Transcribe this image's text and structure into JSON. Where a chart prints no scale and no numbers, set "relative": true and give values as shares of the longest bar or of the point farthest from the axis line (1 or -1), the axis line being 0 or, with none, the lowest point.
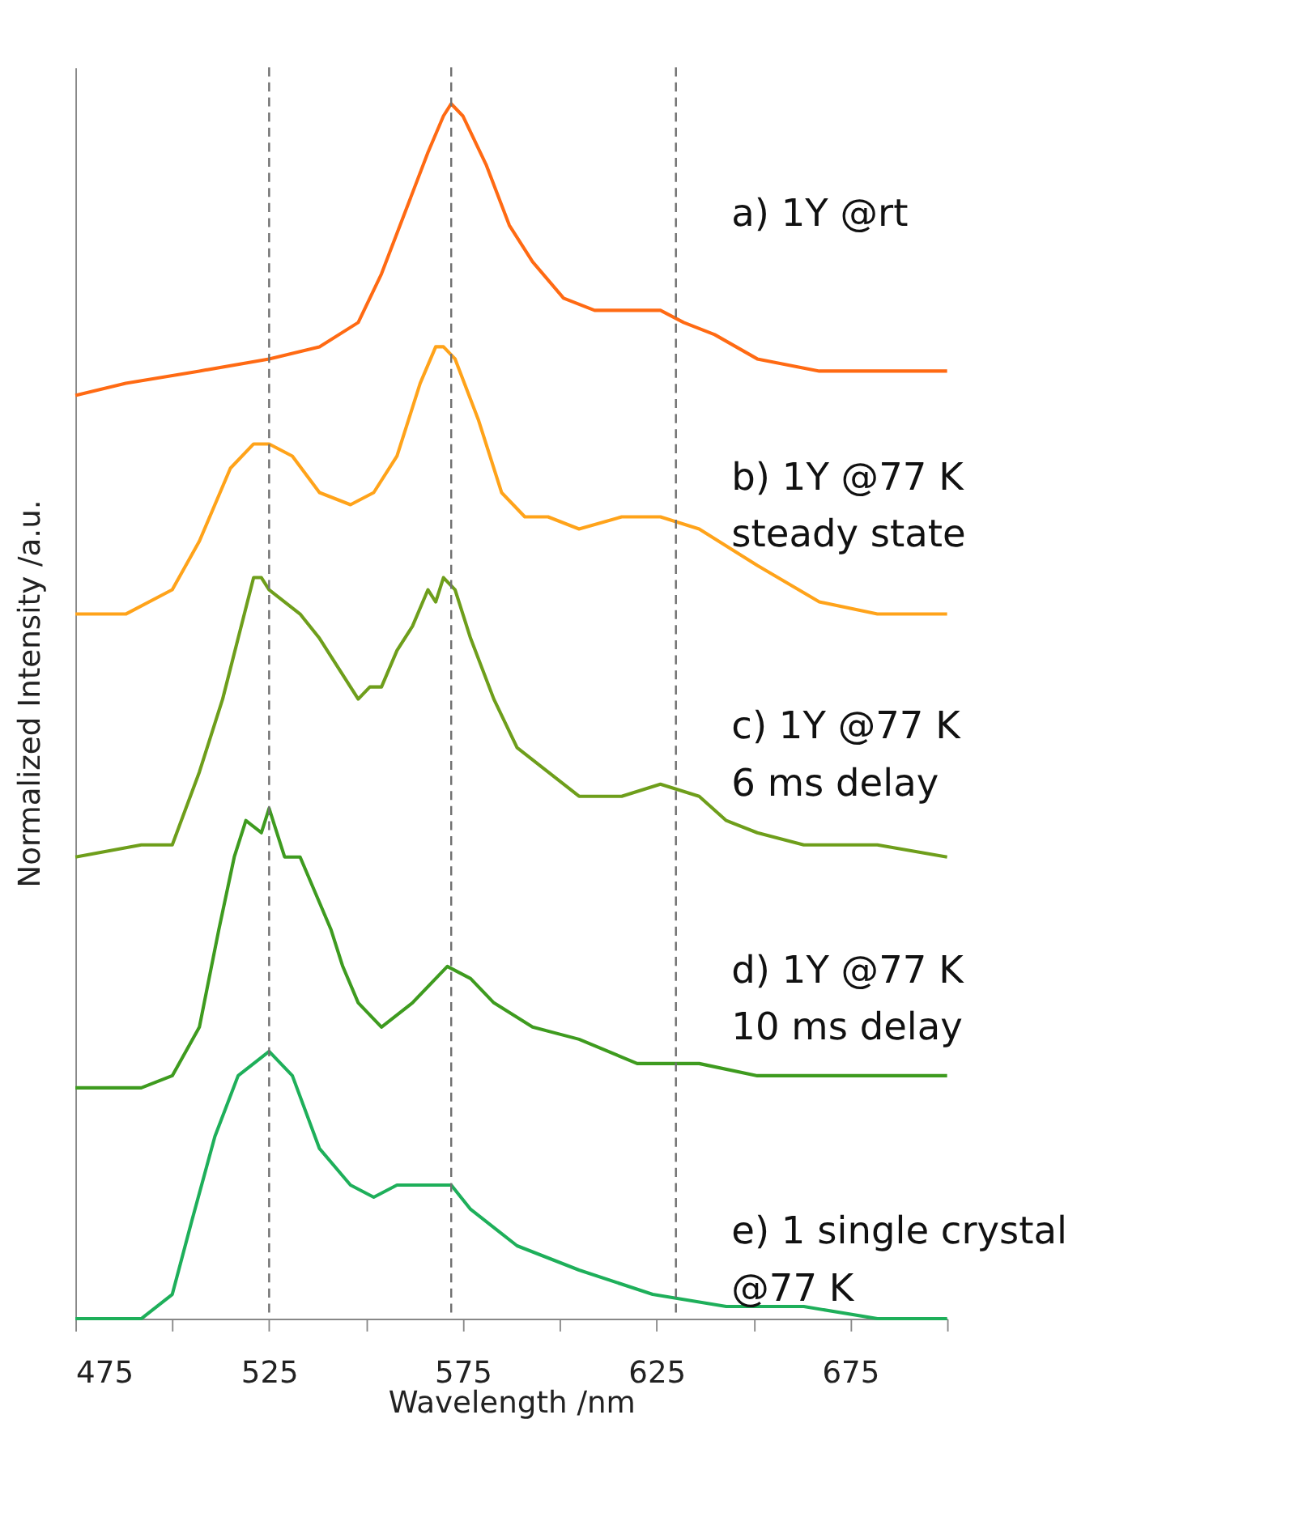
{
  "chart_data": {
    "type": "line",
    "relative": true,
    "xlabel": "Wavelength /nm",
    "ylabel": "Normalized Intensity /a.u.",
    "xlim": [
      475,
      700
    ],
    "xticks": [
      475,
      {
        "value": 500,
        "label": null
      },
      525,
      {
        "value": 550,
        "label": null
      },
      575,
      {
        "value": 600,
        "label": null
      },
      625,
      {
        "value": 650,
        "label": null
      },
      675,
      {
        "value": 700,
        "label": null
      }
    ],
    "grid": false,
    "legend": false,
    "marker": "none",
    "line_style": "solid",
    "ref_lines": [
      {
        "axis": "x",
        "value": 525,
        "label": null,
        "color": "#707070",
        "line_style": "dashed"
      },
      {
        "axis": "x",
        "value": 572,
        "label": null,
        "color": "#707070",
        "line_style": "dashed"
      },
      {
        "axis": "x",
        "value": 630,
        "label": null,
        "color": "#707070",
        "line_style": "dashed"
      }
    ],
    "series": [
      {
        "name": "a) 1Y @rt",
        "color": "#ff6a13",
        "x": [
          475,
          488,
          507,
          525,
          538,
          548,
          554,
          560,
          566,
          570,
          572,
          575,
          581,
          587,
          593,
          601,
          609,
          616,
          626,
          632,
          640,
          651,
          667,
          682,
          700
        ],
        "values": [
          0.76,
          0.77,
          0.78,
          0.79,
          0.8,
          0.82,
          0.86,
          0.91,
          0.96,
          0.99,
          1.0,
          0.99,
          0.95,
          0.9,
          0.87,
          0.84,
          0.83,
          0.83,
          0.83,
          0.82,
          0.81,
          0.79,
          0.78,
          0.78,
          0.78
        ]
      },
      {
        "name": "b) 1Y @77 K\nsteady state",
        "color": "#ffa31a",
        "x": [
          475,
          488,
          500,
          507,
          515,
          521,
          525,
          531,
          538,
          546,
          552,
          558,
          564,
          568,
          570,
          573,
          579,
          585,
          591,
          597,
          605,
          616,
          626,
          636,
          651,
          667,
          682,
          700
        ],
        "values": [
          0.58,
          0.58,
          0.6,
          0.64,
          0.7,
          0.72,
          0.72,
          0.71,
          0.68,
          0.67,
          0.68,
          0.71,
          0.77,
          0.8,
          0.8,
          0.79,
          0.74,
          0.68,
          0.66,
          0.66,
          0.65,
          0.66,
          0.66,
          0.65,
          0.62,
          0.59,
          0.58,
          0.58
        ]
      },
      {
        "name": "c) 1Y @77 K\n6 ms delay",
        "color": "#6e9e1b",
        "x": [
          475,
          492,
          500,
          507,
          513,
          517,
          521,
          523,
          525,
          529,
          533,
          538,
          544,
          548,
          551,
          554,
          558,
          562,
          566,
          568,
          570,
          573,
          577,
          583,
          589,
          597,
          605,
          616,
          626,
          636,
          643,
          651,
          663,
          674,
          682,
          700
        ],
        "values": [
          0.38,
          0.39,
          0.39,
          0.45,
          0.51,
          0.56,
          0.61,
          0.61,
          0.6,
          0.59,
          0.58,
          0.56,
          0.53,
          0.51,
          0.52,
          0.52,
          0.55,
          0.57,
          0.6,
          0.59,
          0.61,
          0.6,
          0.56,
          0.51,
          0.47,
          0.45,
          0.43,
          0.43,
          0.44,
          0.43,
          0.41,
          0.4,
          0.39,
          0.39,
          0.39,
          0.38
        ]
      },
      {
        "name": "d) 1Y @77 K\n10 ms delay",
        "color": "#3e9b1f",
        "x": [
          475,
          492,
          500,
          507,
          512,
          516,
          519,
          523,
          525,
          529,
          533,
          537,
          541,
          544,
          548,
          554,
          562,
          571,
          577,
          583,
          593,
          605,
          620,
          636,
          651,
          667,
          682,
          700
        ],
        "values": [
          0.19,
          0.19,
          0.2,
          0.24,
          0.32,
          0.38,
          0.41,
          0.4,
          0.42,
          0.38,
          0.38,
          0.35,
          0.32,
          0.29,
          0.26,
          0.24,
          0.26,
          0.29,
          0.28,
          0.26,
          0.24,
          0.23,
          0.21,
          0.21,
          0.2,
          0.2,
          0.2,
          0.2
        ]
      },
      {
        "name": "e) 1 single crystal\n@77 K",
        "color": "#1eaf5a",
        "x": [
          475,
          492,
          500,
          505,
          511,
          517,
          521,
          525,
          531,
          538,
          546,
          552,
          558,
          566,
          572,
          577,
          589,
          605,
          624,
          643,
          663,
          682,
          700
        ],
        "values": [
          0.0,
          0.0,
          0.02,
          0.08,
          0.15,
          0.2,
          0.21,
          0.22,
          0.2,
          0.14,
          0.11,
          0.1,
          0.11,
          0.11,
          0.11,
          0.09,
          0.06,
          0.04,
          0.02,
          0.01,
          0.01,
          0.0,
          0.0
        ]
      }
    ]
  }
}
